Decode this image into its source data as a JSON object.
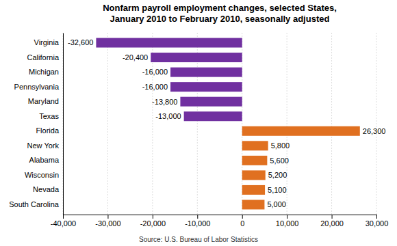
{
  "chart_data": {
    "type": "bar",
    "orientation": "horizontal",
    "title": "Nonfarm payroll employment changes, selected States,\nJanuary 2010 to February 2010, seasonally adjusted",
    "categories": [
      "Virginia",
      "California",
      "Michigan",
      "Pennsylvania",
      "Maryland",
      "Texas",
      "Florida",
      "New York",
      "Alabama",
      "Wisconsin",
      "Nevada",
      "South Carolina"
    ],
    "values": [
      -32600,
      -20400,
      -16000,
      -16000,
      -13800,
      -13000,
      26300,
      5800,
      5600,
      5200,
      5100,
      5000
    ],
    "value_labels": [
      "-32,600",
      "-20,400",
      "-16,000",
      "-16,000",
      "-13,800",
      "-13,000",
      "26,300",
      "5,800",
      "5,600",
      "5,200",
      "5,100",
      "5,000"
    ],
    "colors": [
      "#7030a0",
      "#7030a0",
      "#7030a0",
      "#7030a0",
      "#7030a0",
      "#7030a0",
      "#e07020",
      "#e07020",
      "#e07020",
      "#e07020",
      "#e07020",
      "#e07020"
    ],
    "xlim": [
      -40000,
      30000
    ],
    "xticks": [
      {
        "value": -40000,
        "label": "-40,000"
      },
      {
        "value": -30000,
        "label": "-30,000"
      },
      {
        "value": -20000,
        "label": "-20,000"
      },
      {
        "value": -10000,
        "label": "-10,000"
      },
      0,
      {
        "value": 10000,
        "label": "10,000"
      },
      {
        "value": 20000,
        "label": "20,000"
      },
      {
        "value": 30000,
        "label": "30,000"
      }
    ],
    "grid": true,
    "data_labels": true,
    "annotations": [
      "Source: U.S. Bureau of Labor Statistics"
    ]
  }
}
